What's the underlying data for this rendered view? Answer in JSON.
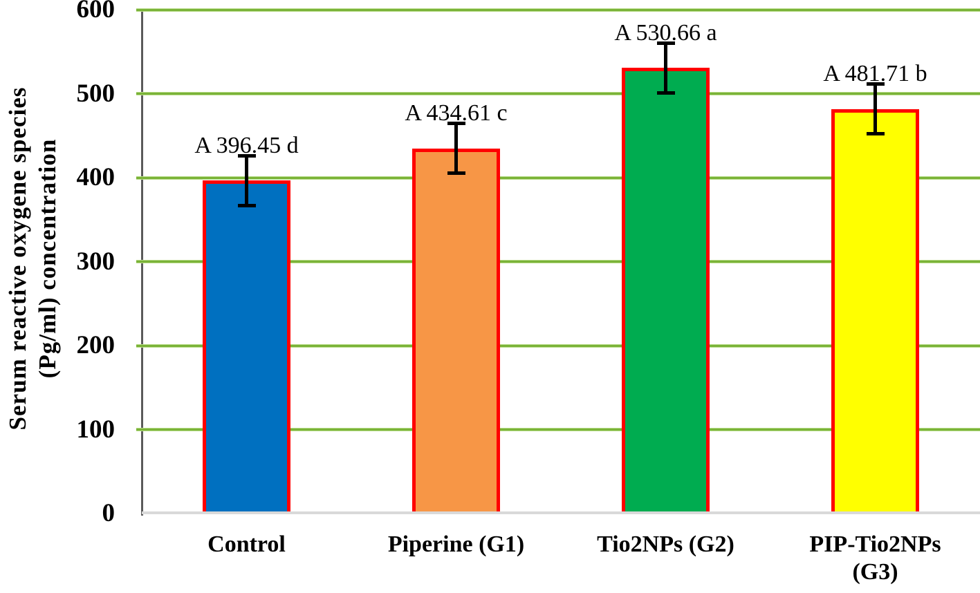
{
  "chart_data": {
    "type": "bar",
    "title": "",
    "ylabel": "Serum reactive oxygene species\n(Pg/ml) concentration",
    "xlabel": "",
    "ylim": [
      0,
      600
    ],
    "yticks": [
      0,
      100,
      200,
      300,
      400,
      500,
      600
    ],
    "grid": "horizontal-major-only",
    "legend": "none",
    "categories": [
      "Control",
      "Piperine (G1)",
      "Tio2NPs (G2)",
      "PIP-Tio2NPs\n(G3)"
    ],
    "values": [
      396.45,
      434.61,
      530.66,
      481.71
    ],
    "error_bars": [
      30,
      30,
      30,
      30
    ],
    "point_labels": [
      "A 396.45 d",
      "A 434.61 c",
      "A 530.66 a",
      "A 481.71 b"
    ],
    "bar_colors": [
      "#0070C0",
      "#F79646",
      "#00AC50",
      "#FFFF00"
    ],
    "bar_border_color": "#FF0000",
    "gridline_color": "#7AB338",
    "y_axis_line_color": "#5A5A5A",
    "x_axis_line_color": "#D9D9D9",
    "error_bar_color": "#000000",
    "text_color": "#000000",
    "background_color": "#FFFFFF"
  }
}
